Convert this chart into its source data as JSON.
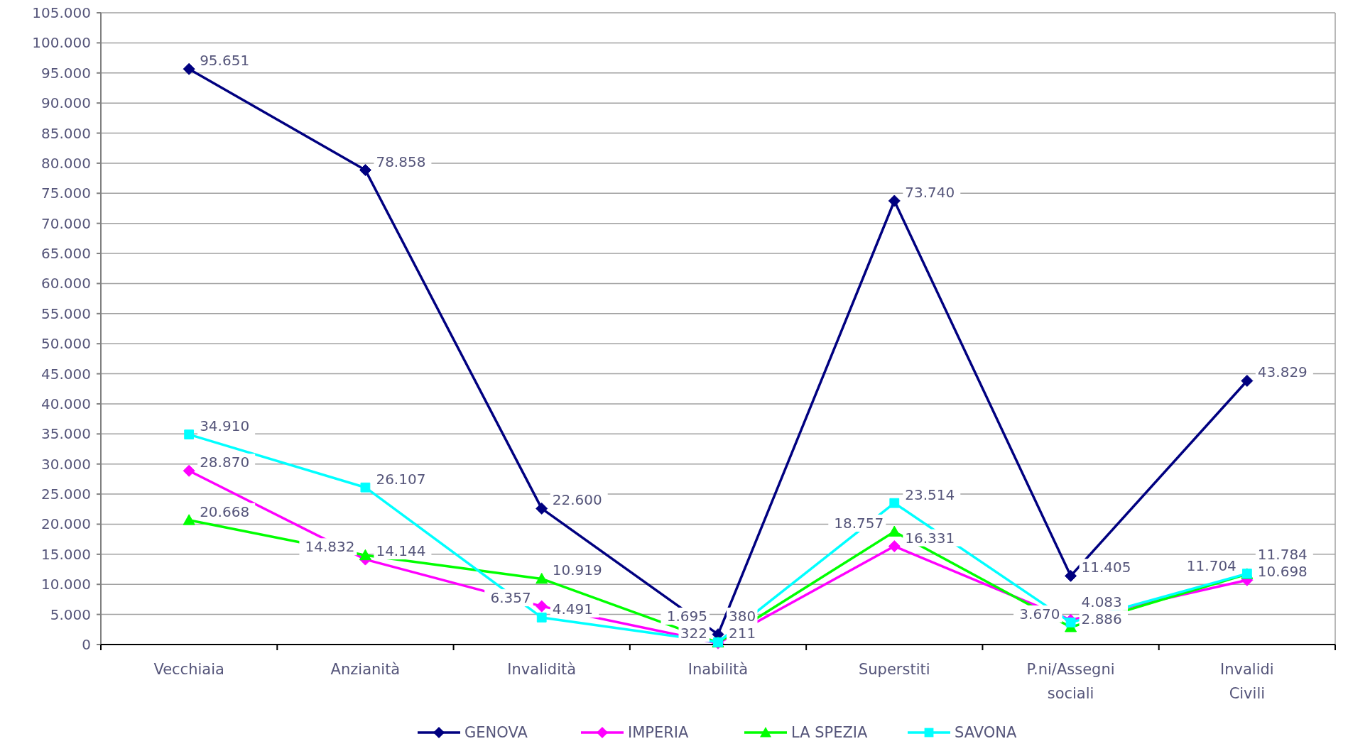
{
  "chart_data": {
    "type": "line",
    "categories": [
      "Vecchiaia",
      "Anzianità",
      "Invalidità",
      "Inabilità",
      "Superstiti",
      "P.ni/Assegni sociali",
      "Invalidi Civili"
    ],
    "series": [
      {
        "name": "GENOVA",
        "color": "#000080",
        "marker": "diamond",
        "values": [
          95651,
          78858,
          22600,
          1695,
          73740,
          11405,
          43829
        ],
        "value_labels": [
          "95.651",
          "78.858",
          "22.600",
          "1.695",
          "73.740",
          "11.405",
          "43.829"
        ]
      },
      {
        "name": "IMPERIA",
        "color": "#ff00ff",
        "marker": "diamond",
        "values": [
          28870,
          14144,
          6357,
          211,
          16331,
          4083,
          10698
        ],
        "value_labels": [
          "28.870",
          "14.144",
          "6.357",
          "211",
          "16.331",
          "4.083",
          "10.698"
        ]
      },
      {
        "name": "LA SPEZIA",
        "color": "#00ff00",
        "marker": "triangle",
        "values": [
          20668,
          14832,
          10919,
          322,
          18757,
          2886,
          11704
        ],
        "value_labels": [
          "20.668",
          "14.832",
          "10.919",
          "322",
          "18.757",
          "2.886",
          "11.704"
        ]
      },
      {
        "name": "SAVONA",
        "color": "#00ffff",
        "marker": "square",
        "values": [
          34910,
          26107,
          4491,
          380,
          23514,
          3670,
          11784
        ],
        "value_labels": [
          "34.910",
          "26.107",
          "4.491",
          "380",
          "23.514",
          "3.670",
          "11.784"
        ]
      }
    ],
    "ylim": [
      0,
      105000
    ],
    "yticks": [
      0,
      {
        "value": 5000,
        "label": "5.000"
      },
      {
        "value": 10000,
        "label": "10.000"
      },
      {
        "value": 15000,
        "label": "15.000"
      },
      {
        "value": 20000,
        "label": "20.000"
      },
      {
        "value": 25000,
        "label": "25.000"
      },
      {
        "value": 30000,
        "label": "30.000"
      },
      {
        "value": 35000,
        "label": "35.000"
      },
      {
        "value": 40000,
        "label": "40.000"
      },
      {
        "value": 45000,
        "label": "45.000"
      },
      {
        "value": 50000,
        "label": "50.000"
      },
      {
        "value": 55000,
        "label": "55.000"
      },
      {
        "value": 60000,
        "label": "60.000"
      },
      {
        "value": 65000,
        "label": "65.000"
      },
      {
        "value": 70000,
        "label": "70.000"
      },
      {
        "value": 75000,
        "label": "75.000"
      },
      {
        "value": 80000,
        "label": "80.000"
      },
      {
        "value": 85000,
        "label": "85.000"
      },
      {
        "value": 90000,
        "label": "90.000"
      },
      {
        "value": 95000,
        "label": "95.000"
      },
      {
        "value": 100000,
        "label": "100.000"
      },
      {
        "value": 105000,
        "label": "105.000"
      }
    ],
    "grid": "y",
    "legend": "bottom",
    "line_style": "solid"
  }
}
